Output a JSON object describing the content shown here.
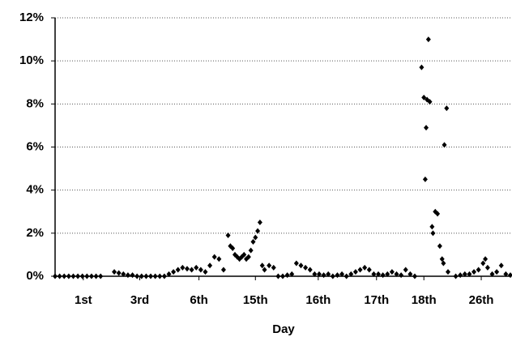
{
  "chart_data": {
    "type": "scatter",
    "x_label": "Day",
    "color": "#000000",
    "grid": true,
    "xlim": [
      0,
      100
    ],
    "xticks": [
      {
        "value": 6.2,
        "label": "1st"
      },
      {
        "value": 18.6,
        "label": "3rd"
      },
      {
        "value": 31.6,
        "label": "6th"
      },
      {
        "value": 44,
        "label": "15th"
      },
      {
        "value": 57.8,
        "label": "16th"
      },
      {
        "value": 70.6,
        "label": "17th"
      },
      {
        "value": 81,
        "label": "18th"
      },
      {
        "value": 93.6,
        "label": "26th"
      }
    ],
    "ylim": [
      0,
      12
    ],
    "yticks": [
      {
        "value": 0,
        "label": "0%"
      },
      {
        "value": 2,
        "label": "2%"
      },
      {
        "value": 4,
        "label": "4%"
      },
      {
        "value": 6,
        "label": "6%"
      },
      {
        "value": 8,
        "label": "8%"
      },
      {
        "value": 10,
        "label": "10%"
      },
      {
        "value": 12,
        "label": "12%"
      }
    ],
    "x": [
      0,
      1,
      2,
      3,
      4,
      5,
      6,
      7,
      8,
      9,
      10,
      13,
      14,
      15,
      16,
      17,
      18,
      19,
      20,
      21,
      22,
      23,
      24,
      25,
      26,
      27,
      28,
      29,
      30,
      31,
      32,
      33,
      34,
      35,
      36,
      37,
      38,
      38.5,
      39,
      39.5,
      40,
      40.5,
      41,
      41.5,
      42,
      42.5,
      43,
      43.5,
      44,
      44.5,
      45,
      45.5,
      46,
      47,
      48,
      49,
      50,
      51,
      52,
      53,
      54,
      55,
      56,
      57,
      58,
      59,
      60,
      61,
      62,
      63,
      64,
      65,
      66,
      67,
      68,
      69,
      70,
      71,
      72,
      73,
      74,
      75,
      76,
      77,
      78,
      79,
      80.5,
      81,
      81.3,
      81.5,
      81.7,
      82,
      82.3,
      82.8,
      83,
      83.5,
      84,
      84.5,
      85,
      85.3,
      85.5,
      86,
      86.3,
      88,
      89,
      90,
      91,
      92,
      93,
      94,
      94.5,
      95,
      96,
      97,
      98,
      99,
      100
    ],
    "values": [
      0,
      0,
      0,
      0,
      0,
      0,
      0,
      0,
      0,
      0,
      0,
      0.2,
      0.15,
      0.1,
      0.05,
      0.05,
      0,
      0,
      0,
      0,
      0,
      0,
      0,
      0.1,
      0.2,
      0.3,
      0.4,
      0.35,
      0.3,
      0.4,
      0.3,
      0.2,
      0.5,
      0.9,
      0.8,
      0.3,
      1.9,
      1.4,
      1.3,
      1.0,
      0.9,
      0.8,
      0.9,
      1.0,
      0.8,
      0.9,
      1.2,
      1.6,
      1.8,
      2.1,
      2.5,
      0.5,
      0.3,
      0.5,
      0.4,
      0,
      0,
      0.05,
      0.1,
      0.6,
      0.5,
      0.4,
      0.3,
      0.1,
      0.1,
      0.05,
      0.1,
      0,
      0.05,
      0.1,
      0,
      0.1,
      0.2,
      0.3,
      0.4,
      0.3,
      0.1,
      0.1,
      0.05,
      0.1,
      0.2,
      0.1,
      0.05,
      0.3,
      0.1,
      0,
      9.7,
      8.3,
      4.5,
      6.9,
      8.2,
      11.0,
      8.1,
      2.3,
      2.0,
      3.0,
      2.9,
      1.4,
      0.8,
      0.6,
      6.1,
      7.8,
      0.2,
      0,
      0.05,
      0.1,
      0.1,
      0.2,
      0.3,
      0.6,
      0.8,
      0.4,
      0.1,
      0.2,
      0.5,
      0.1,
      0.05
    ]
  }
}
